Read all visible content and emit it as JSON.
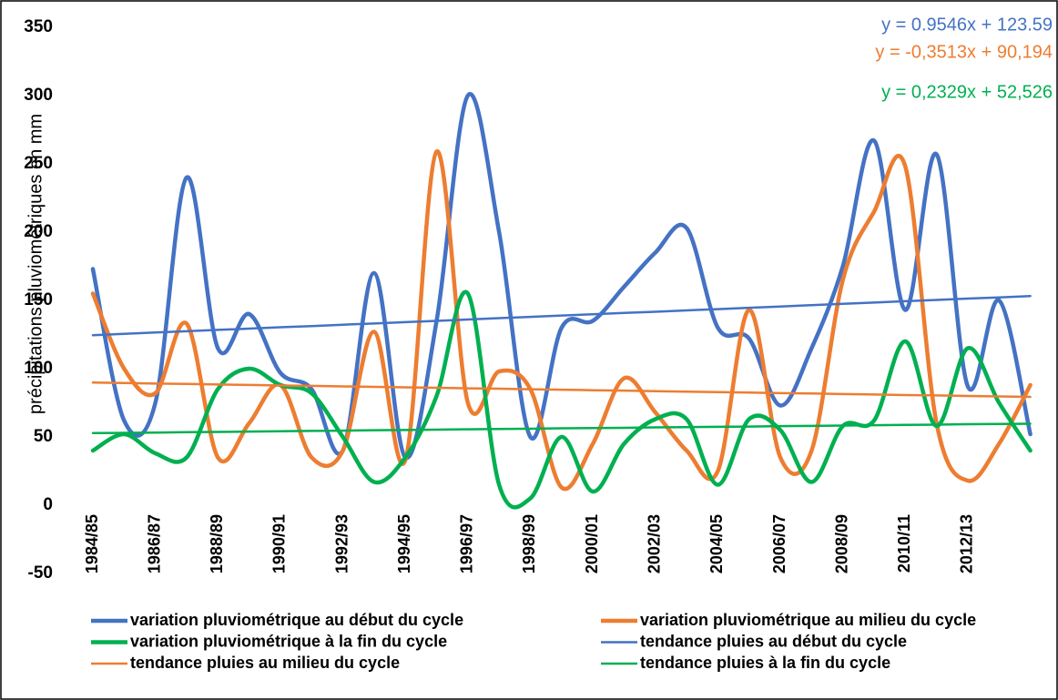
{
  "chart_data": {
    "type": "line",
    "y_label": "précipitations pluviométriques en mm",
    "categories": [
      "1984/85",
      null,
      "1986/87",
      null,
      "1988/89",
      null,
      "1990/91",
      null,
      "1992/93",
      null,
      "1994/95",
      null,
      "1996/97",
      null,
      "1998/99",
      null,
      "2000/01",
      null,
      "2002/03",
      null,
      "2004/05",
      null,
      "2006/07",
      null,
      "2008/09",
      null,
      "2010/11",
      null,
      "2012/13",
      null,
      null
    ],
    "ylim": [
      -50,
      350
    ],
    "yticks": [
      -50,
      0,
      50,
      100,
      150,
      200,
      250,
      300,
      350
    ],
    "smooth": true,
    "series": [
      {
        "name": "variation pluviométrique au début du cycle",
        "color": "#4472c4",
        "values": [
          173,
          62,
          75,
          240,
          115,
          140,
          97,
          85,
          40,
          170,
          35,
          135,
          300,
          200,
          50,
          130,
          135,
          160,
          185,
          203,
          130,
          122,
          73,
          115,
          175,
          267,
          143,
          257,
          87,
          150,
          52
        ]
      },
      {
        "name": "variation pluviométrique au milieu du cycle",
        "color": "#ed7d31",
        "values": [
          155,
          100,
          82,
          133,
          35,
          60,
          88,
          35,
          40,
          127,
          33,
          259,
          75,
          98,
          85,
          13,
          45,
          93,
          68,
          40,
          25,
          143,
          35,
          40,
          165,
          215,
          248,
          60,
          18,
          45,
          88
        ]
      },
      {
        "name": "variation pluviométrique à la fin du cycle",
        "color": "#00b050",
        "values": [
          40,
          52,
          38,
          35,
          85,
          100,
          88,
          82,
          50,
          17,
          35,
          80,
          155,
          15,
          5,
          50,
          10,
          45,
          63,
          63,
          15,
          63,
          55,
          17,
          58,
          62,
          120,
          58,
          115,
          75,
          40
        ]
      },
      {
        "name": "tendance pluies  au début du cycle",
        "color": "#4472c4",
        "trend": true,
        "values": [
          124.5,
          125.5,
          126.5,
          127.4,
          128.4,
          129.3,
          130.3,
          131.2,
          132.2,
          133.1,
          134.1,
          135.0,
          136.0,
          137.0,
          137.9,
          138.9,
          139.8,
          140.8,
          141.7,
          142.7,
          143.6,
          144.6,
          145.5,
          146.5,
          147.5,
          148.4,
          149.4,
          150.3,
          151.3,
          152.2,
          153.2
        ]
      },
      {
        "name": "tendance pluies  au milieu du cycle",
        "color": "#ed7d31",
        "trend": true,
        "values": [
          89.8,
          89.5,
          89.1,
          88.8,
          88.4,
          88.1,
          87.7,
          87.4,
          87.0,
          86.7,
          86.3,
          86.0,
          85.6,
          85.3,
          84.9,
          84.6,
          84.2,
          83.9,
          83.5,
          83.2,
          82.8,
          82.5,
          82.1,
          81.8,
          81.4,
          81.1,
          80.7,
          80.4,
          80.0,
          79.7,
          79.3
        ]
      },
      {
        "name": "tendance pluies  à la fin du cycle",
        "color": "#00b050",
        "trend": true,
        "values": [
          52.8,
          53.0,
          53.2,
          53.5,
          53.7,
          53.9,
          54.2,
          54.4,
          54.6,
          54.9,
          55.1,
          55.3,
          55.6,
          55.8,
          56.0,
          56.3,
          56.5,
          56.7,
          57.0,
          57.2,
          57.4,
          57.6,
          57.9,
          58.1,
          58.3,
          58.6,
          58.8,
          59.0,
          59.3,
          59.5,
          59.7
        ]
      }
    ],
    "annotations": [
      {
        "text": "y = 0.9546x + 123.59",
        "color": "#4472c4"
      },
      {
        "text": "y = -0,3513x + 90,194",
        "color": "#ed7d31"
      },
      {
        "text": "y = 0,2329x + 52,526",
        "color": "#00b050"
      }
    ]
  }
}
